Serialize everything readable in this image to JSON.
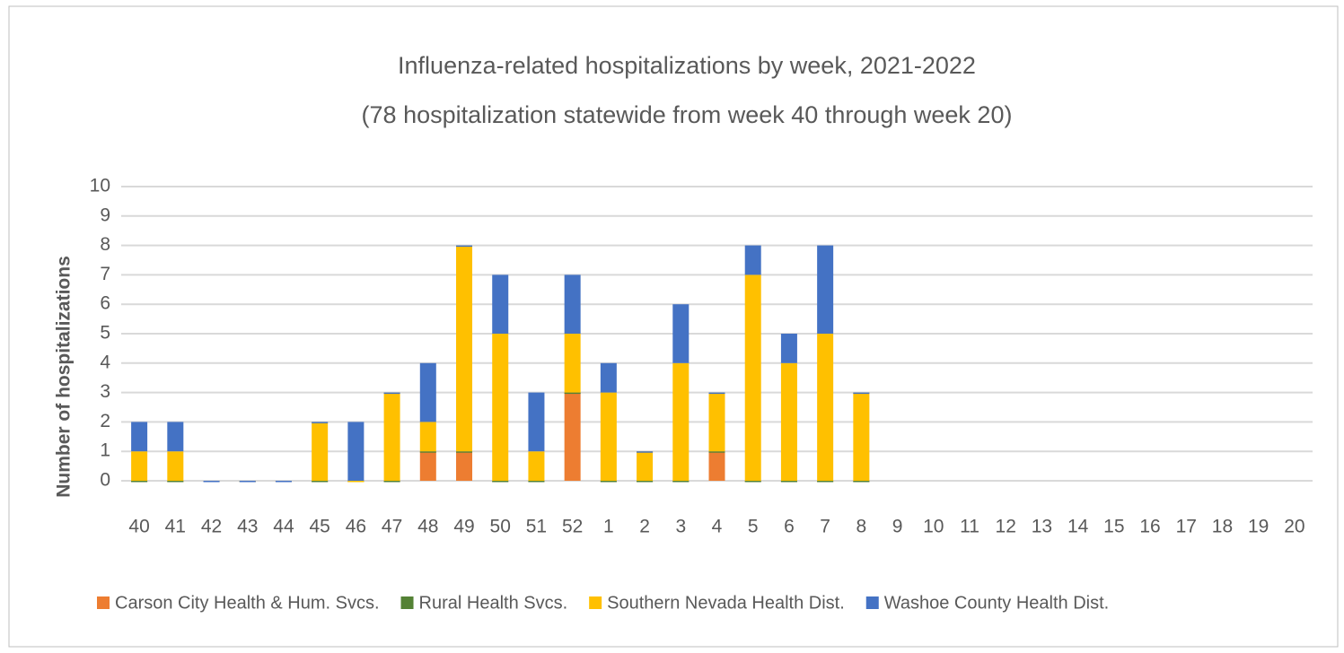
{
  "chart_data": {
    "type": "bar",
    "stacked": true,
    "title": "Influenza-related hospitalizations by week, 2021-2022",
    "subtitle": "(78 hospitalization statewide from week 40 through week 20)",
    "y_label": "Number of hospitalizations",
    "categories": [
      "40",
      "41",
      "42",
      "43",
      "44",
      "45",
      "46",
      "47",
      "48",
      "49",
      "50",
      "51",
      "52",
      "1",
      "2",
      "3",
      "4",
      "5",
      "6",
      "7",
      "8",
      "9",
      "10",
      "11",
      "12",
      "13",
      "14",
      "15",
      "16",
      "17",
      "18",
      "19",
      "20"
    ],
    "series": [
      {
        "name": "Carson City Health & Hum. Svcs.",
        "color": "#ed7d31",
        "values": [
          0,
          0,
          0,
          0,
          0,
          0,
          0,
          0,
          1,
          1,
          0,
          0,
          3,
          0,
          0,
          0,
          1,
          0,
          0,
          0,
          0,
          null,
          null,
          null,
          null,
          null,
          null,
          null,
          null,
          null,
          null,
          null,
          null
        ]
      },
      {
        "name": "Rural Health Svcs.",
        "color": "#548235",
        "values": [
          0,
          0,
          0,
          0,
          0,
          0,
          0,
          0,
          0,
          0,
          0,
          0,
          0,
          0,
          0,
          0,
          0,
          0,
          0,
          0,
          0,
          null,
          null,
          null,
          null,
          null,
          null,
          null,
          null,
          null,
          null,
          null,
          null
        ]
      },
      {
        "name": "Southern Nevada Health Dist.",
        "color": "#ffc000",
        "values": [
          1,
          1,
          0,
          0,
          0,
          2,
          0,
          3,
          1,
          7,
          5,
          1,
          2,
          3,
          1,
          4,
          2,
          7,
          4,
          5,
          3,
          null,
          null,
          null,
          null,
          null,
          null,
          null,
          null,
          null,
          null,
          null,
          null
        ]
      },
      {
        "name": "Washoe County Health Dist.",
        "color": "#4472c4",
        "values": [
          1,
          1,
          0,
          0,
          0,
          0,
          2,
          0,
          2,
          0,
          2,
          2,
          2,
          1,
          0,
          2,
          0,
          1,
          1,
          3,
          0,
          null,
          null,
          null,
          null,
          null,
          null,
          null,
          null,
          null,
          null,
          null,
          null
        ]
      }
    ],
    "ylim": [
      0,
      10
    ],
    "yticks": [
      0,
      1,
      2,
      3,
      4,
      5,
      6,
      7,
      8,
      9,
      10
    ],
    "grid": true,
    "legend": "bottom"
  }
}
